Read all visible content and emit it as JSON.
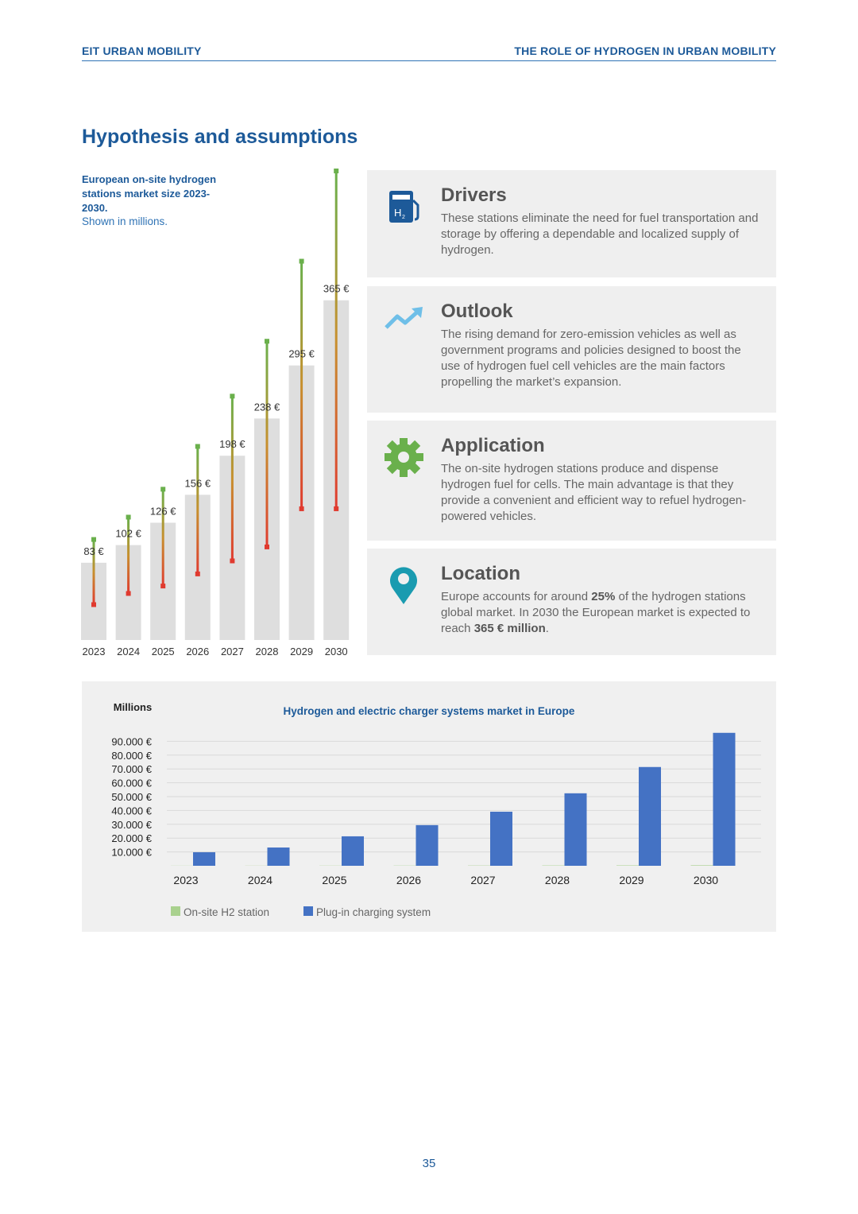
{
  "header": {
    "left": "EIT URBAN MOBILITY",
    "right": "THE ROLE OF HYDROGEN IN URBAN MOBILITY"
  },
  "section_title": "Hypothesis and assumptions",
  "chart_data": [
    {
      "type": "bar",
      "title": "European on-site hydrogen stations market size 2023-2030.",
      "subtitle": "Shown in millions.",
      "categories": [
        "2023",
        "2024",
        "2025",
        "2026",
        "2027",
        "2028",
        "2029",
        "2030"
      ],
      "values": [
        83,
        102,
        126,
        156,
        198,
        238,
        295,
        365
      ],
      "value_labels": [
        "83 €",
        "102 €",
        "126 €",
        "156 €",
        "198 €",
        "238 €",
        "295 €",
        "365 €"
      ],
      "high": [
        108,
        132,
        162,
        208,
        262,
        321,
        407,
        504
      ],
      "low": [
        38,
        50,
        58,
        71,
        85,
        100,
        141,
        141
      ],
      "color": "#dedede",
      "high_color": "#6ab04c",
      "low_color": "#e03a2f"
    },
    {
      "type": "grouped_bar",
      "title": "Hydrogen and electric charger systems market in Europe",
      "y_label": "Millions",
      "categories": [
        "2023",
        "2024",
        "2025",
        "2026",
        "2027",
        "2028",
        "2029",
        "2030"
      ],
      "series": [
        {
          "name": "On-site H2 station",
          "color": "#a9d18e",
          "values": [
            83,
            102,
            126,
            156,
            198,
            238,
            295,
            365
          ]
        },
        {
          "name": "Plug-in charging system",
          "color": "#4472c4",
          "values": [
            9800,
            13200,
            21300,
            29400,
            39100,
            52400,
            71400,
            96100
          ]
        }
      ],
      "ylim": [
        0,
        100000
      ],
      "yticks": [
        {
          "value": 10000,
          "label": "10.000 €"
        },
        {
          "value": 20000,
          "label": "20.000 €"
        },
        {
          "value": 30000,
          "label": "30.000 €"
        },
        {
          "value": 40000,
          "label": "40.000 €"
        },
        {
          "value": 50000,
          "label": "50.000 €"
        },
        {
          "value": 60000,
          "label": "60.000 €"
        },
        {
          "value": 70000,
          "label": "70.000 €"
        },
        {
          "value": 80000,
          "label": "80.000 €"
        },
        {
          "value": 90000,
          "label": "90.000 €"
        }
      ],
      "grid": true,
      "legend": "bottom"
    }
  ],
  "cards": [
    {
      "heading": "Drivers",
      "body": [
        {
          "text": "These stations eliminate the need for fuel transportation and storage by offering a dependable and localized supply of hydrogen."
        }
      ]
    },
    {
      "heading": "Outlook",
      "body": [
        {
          "text": "The rising demand for zero-emission vehicles as well as government programs and policies designed to boost the use of hydrogen fuel cell vehicles are the main factors propelling the market’s expansion."
        }
      ]
    },
    {
      "heading": "Application",
      "body": [
        {
          "text": "The on-site hydrogen stations produce and dispense hydrogen fuel for cells. The main advantage is that they provide a convenient and efficient way to refuel hydrogen-powered vehicles."
        }
      ]
    },
    {
      "heading": "Location",
      "body": [
        {
          "text": "Europe accounts for around "
        },
        {
          "text": "25%",
          "bold": true
        },
        {
          "text": " of the hydrogen stations global market. In 2030 the European market is expected to reach "
        },
        {
          "text": "365 € million",
          "bold": true
        },
        {
          "text": "."
        }
      ]
    }
  ],
  "page_number": "35"
}
